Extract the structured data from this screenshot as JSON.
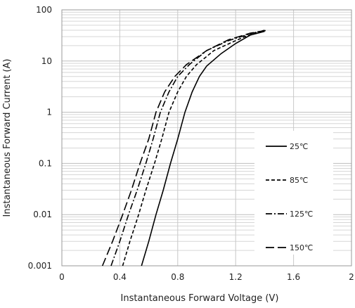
{
  "chart_data": {
    "type": "line",
    "title": "",
    "xlabel": "Instantaneous Forward Voltage (V)",
    "ylabel": "Instantaneous Forward Current (A)",
    "xlim": [
      0,
      2
    ],
    "ylim": [
      0.001,
      100
    ],
    "yscale": "log",
    "grid": true,
    "legend_position": "right",
    "x_ticks": [
      "0",
      "0.4",
      "0.8",
      "1.2",
      "1.6",
      "2"
    ],
    "y_ticks": [
      "0.001",
      "0.01",
      "0.1",
      "1",
      "10",
      "100"
    ],
    "series": [
      {
        "name": "25℃",
        "dash": "solid",
        "color": "#000000",
        "points": [
          [
            0.55,
            0.001
          ],
          [
            0.6,
            0.003
          ],
          [
            0.65,
            0.01
          ],
          [
            0.7,
            0.03
          ],
          [
            0.75,
            0.1
          ],
          [
            0.8,
            0.3
          ],
          [
            0.85,
            1.0
          ],
          [
            0.9,
            2.5
          ],
          [
            0.95,
            5.0
          ],
          [
            1.0,
            8.0
          ],
          [
            1.1,
            14.0
          ],
          [
            1.2,
            22.0
          ],
          [
            1.3,
            32.0
          ],
          [
            1.4,
            38.0
          ]
        ]
      },
      {
        "name": "85℃",
        "dash": "short-dash",
        "color": "#000000",
        "points": [
          [
            0.42,
            0.001
          ],
          [
            0.47,
            0.003
          ],
          [
            0.53,
            0.01
          ],
          [
            0.58,
            0.03
          ],
          [
            0.64,
            0.1
          ],
          [
            0.69,
            0.3
          ],
          [
            0.74,
            1.0
          ],
          [
            0.8,
            2.5
          ],
          [
            0.86,
            5.0
          ],
          [
            0.93,
            8.5
          ],
          [
            1.05,
            16.0
          ],
          [
            1.2,
            25.0
          ],
          [
            1.3,
            33.0
          ],
          [
            1.4,
            39.0
          ]
        ]
      },
      {
        "name": "125℃",
        "dash": "dash-dot",
        "color": "#000000",
        "points": [
          [
            0.34,
            0.001
          ],
          [
            0.4,
            0.003
          ],
          [
            0.46,
            0.01
          ],
          [
            0.52,
            0.03
          ],
          [
            0.58,
            0.1
          ],
          [
            0.63,
            0.3
          ],
          [
            0.68,
            1.0
          ],
          [
            0.74,
            2.5
          ],
          [
            0.8,
            5.0
          ],
          [
            0.88,
            8.5
          ],
          [
            1.0,
            16.0
          ],
          [
            1.15,
            25.0
          ],
          [
            1.3,
            34.0
          ],
          [
            1.4,
            40.0
          ]
        ]
      },
      {
        "name": "150℃",
        "dash": "long-dash",
        "color": "#000000",
        "points": [
          [
            0.28,
            0.001
          ],
          [
            0.35,
            0.003
          ],
          [
            0.42,
            0.01
          ],
          [
            0.48,
            0.03
          ],
          [
            0.54,
            0.1
          ],
          [
            0.6,
            0.3
          ],
          [
            0.65,
            1.0
          ],
          [
            0.71,
            2.5
          ],
          [
            0.78,
            5.0
          ],
          [
            0.86,
            8.5
          ],
          [
            1.0,
            16.0
          ],
          [
            1.15,
            26.0
          ],
          [
            1.3,
            35.0
          ],
          [
            1.42,
            40.0
          ]
        ]
      }
    ]
  }
}
